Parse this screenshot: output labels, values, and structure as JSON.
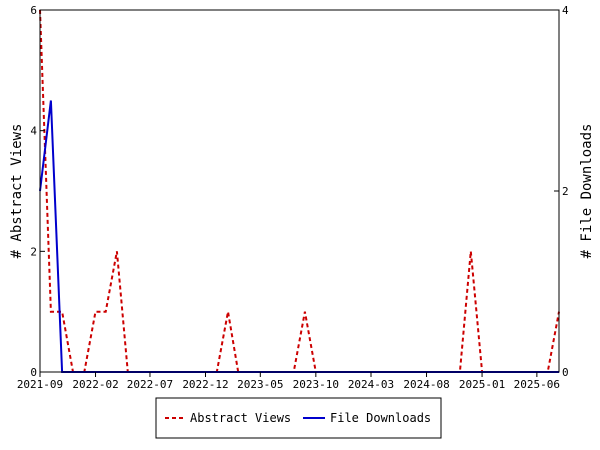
{
  "chart_data": {
    "type": "line",
    "x_axis": {
      "type": "date",
      "ticks": [
        "2021-09",
        "2022-02",
        "2022-07",
        "2022-12",
        "2023-05",
        "2023-10",
        "2024-03",
        "2024-08",
        "2025-01",
        "2025-06"
      ]
    },
    "y_left": {
      "label": "# Abstract Views",
      "range": [
        0,
        6
      ],
      "ticks": [
        "0",
        "2",
        "4",
        "6"
      ]
    },
    "y_right": {
      "label": "# File Downloads",
      "range": [
        0,
        4
      ],
      "ticks": [
        "0",
        "2",
        "4"
      ]
    },
    "grid": false,
    "legend": {
      "placement": "bottom-center"
    },
    "series": [
      {
        "name": "Abstract Views",
        "axis": "left",
        "color": "#cc0000",
        "style": "dashed",
        "points": [
          [
            "2021-09-01",
            6
          ],
          [
            "2021-10-01",
            1
          ],
          [
            "2021-11-01",
            1
          ],
          [
            "2021-12-01",
            0
          ],
          [
            "2022-01-01",
            0
          ],
          [
            "2022-02-01",
            1
          ],
          [
            "2022-03-01",
            1
          ],
          [
            "2022-04-01",
            2
          ],
          [
            "2022-05-01",
            0
          ],
          [
            "2023-01-01",
            0
          ],
          [
            "2023-02-01",
            1
          ],
          [
            "2023-03-01",
            0
          ],
          [
            "2023-08-01",
            0
          ],
          [
            "2023-09-01",
            1
          ],
          [
            "2023-10-01",
            0
          ],
          [
            "2024-11-01",
            0
          ],
          [
            "2024-12-01",
            2
          ],
          [
            "2025-01-01",
            0
          ],
          [
            "2025-07-01",
            0
          ],
          [
            "2025-08-01",
            1
          ]
        ]
      },
      {
        "name": "File Downloads",
        "axis": "right",
        "color": "#0000cc",
        "style": "solid",
        "points": [
          [
            "2021-09-01",
            2
          ],
          [
            "2021-10-01",
            3
          ],
          [
            "2021-11-01",
            0
          ],
          [
            "2025-08-01",
            0
          ]
        ]
      }
    ]
  }
}
